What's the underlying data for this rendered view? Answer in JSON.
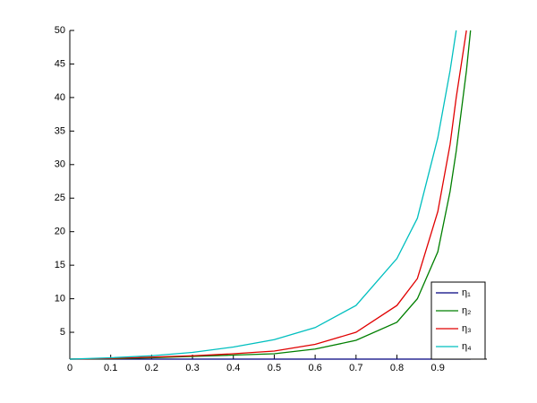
{
  "chart_data": {
    "type": "line",
    "x": [
      0,
      0.1,
      0.2,
      0.3,
      0.4,
      0.5,
      0.6,
      0.7,
      0.8,
      0.85,
      0.9,
      0.93,
      0.945,
      0.97,
      0.98
    ],
    "series": [
      {
        "name": "η₁",
        "color": "#00007f",
        "values": [
          1,
          1,
          1,
          1,
          1,
          1,
          1,
          1,
          1,
          1,
          1,
          1,
          1,
          1,
          1
        ]
      },
      {
        "name": "η₂",
        "color": "#007f00",
        "values": [
          1,
          1.05,
          1.2,
          1.4,
          1.6,
          1.8,
          2.5,
          3.8,
          6.5,
          10,
          17,
          26,
          32,
          44,
          50
        ]
      },
      {
        "name": "η₃",
        "color": "#e00000",
        "values": [
          1,
          1.1,
          1.3,
          1.5,
          1.8,
          2.2,
          3.2,
          5,
          9,
          13,
          23,
          33,
          40,
          50,
          null
        ]
      },
      {
        "name": "η₄",
        "color": "#00bfbf",
        "values": [
          1,
          1.2,
          1.5,
          2,
          2.8,
          3.9,
          5.7,
          9,
          16,
          22,
          34,
          44,
          50,
          null,
          null
        ]
      }
    ],
    "xlim": [
      0,
      1.02
    ],
    "ylim": [
      1,
      50
    ],
    "xticks": [
      0,
      0.1,
      0.2,
      0.3,
      0.4,
      0.5,
      0.6,
      0.7,
      0.8,
      0.9
    ],
    "yticks": [
      5,
      10,
      15,
      20,
      25,
      30,
      35,
      40,
      45,
      50
    ],
    "legend": "lower right"
  }
}
